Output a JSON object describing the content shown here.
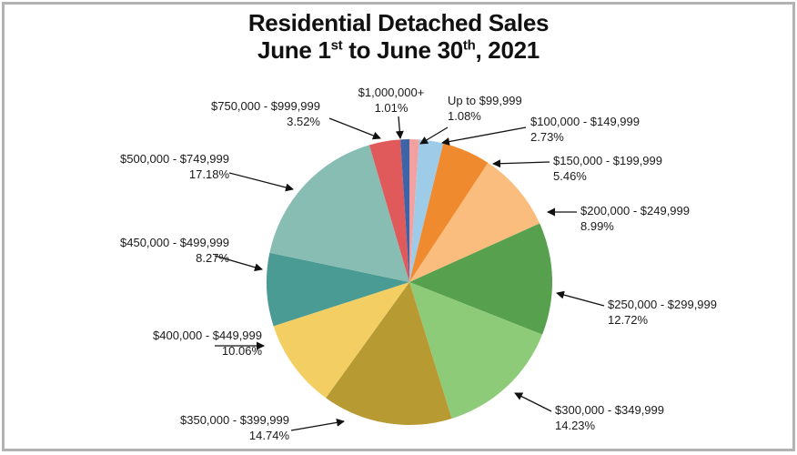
{
  "title": {
    "line1": "Residential Detached Sales",
    "line2_a": "June 1",
    "line2_sup1": "st",
    "line2_b": " to June 30",
    "line2_sup2": "th",
    "line2_c": ", 2021"
  },
  "chart_data": {
    "type": "pie",
    "title": "Residential Detached Sales June 1st to June 30th, 2021",
    "start_angle": "12 o'clock, clockwise",
    "slices": [
      {
        "label": "Up to $99,999",
        "value": 1.08,
        "value_label": "1.08%",
        "color": "#f2a0a0"
      },
      {
        "label": "$100,000 - $149,999",
        "value": 2.73,
        "value_label": "2.73%",
        "color": "#9ecbe8"
      },
      {
        "label": "$150,000 - $199,999",
        "value": 5.46,
        "value_label": "5.46%",
        "color": "#f08a2e"
      },
      {
        "label": "$200,000 - $249,999",
        "value": 8.99,
        "value_label": "8.99%",
        "color": "#fbbd7e"
      },
      {
        "label": "$250,000 - $299,999",
        "value": 12.72,
        "value_label": "12.72%",
        "color": "#57a04e"
      },
      {
        "label": "$300,000 - $349,999",
        "value": 14.23,
        "value_label": "14.23%",
        "color": "#8ecb79"
      },
      {
        "label": "$350,000 - $399,999",
        "value": 14.74,
        "value_label": "14.74%",
        "color": "#b89a33"
      },
      {
        "label": "$400,000 - $449,999",
        "value": 10.06,
        "value_label": "10.06%",
        "color": "#f3cf63"
      },
      {
        "label": "$450,000 - $499,999",
        "value": 8.27,
        "value_label": "8.27%",
        "color": "#499b93"
      },
      {
        "label": "$500,000 - $749,999",
        "value": 17.18,
        "value_label": "17.18%",
        "color": "#88bdb4"
      },
      {
        "label": "$750,000 - $999,999",
        "value": 3.52,
        "value_label": "3.52%",
        "color": "#e05a5c"
      },
      {
        "label": "$1,000,000+",
        "value": 1.01,
        "value_label": "1.01%",
        "color": "#3f63a7"
      }
    ]
  }
}
